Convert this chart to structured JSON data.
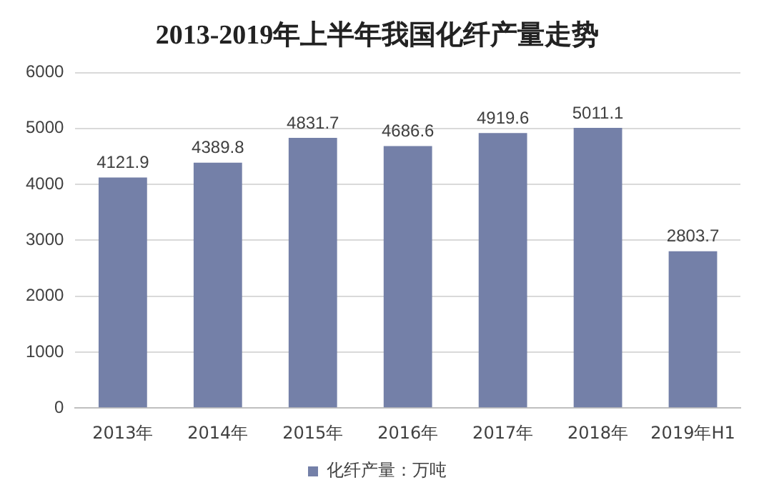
{
  "chart_data": {
    "type": "bar",
    "title": "2013-2019年上半年我国化纤产量走势",
    "categories": [
      "2013年",
      "2014年",
      "2015年",
      "2016年",
      "2017年",
      "2018年",
      "2019年H1"
    ],
    "series": [
      {
        "name": "化纤产量：万吨",
        "color": "#7480a8",
        "values": [
          4121.9,
          4389.8,
          4831.7,
          4686.6,
          4919.6,
          5011.1,
          2803.7
        ]
      }
    ],
    "ylim": [
      0,
      6000
    ],
    "yticks": [
      0,
      1000,
      2000,
      3000,
      4000,
      5000,
      6000
    ],
    "grid": "y",
    "legend": "bottom",
    "data_labels": true
  }
}
